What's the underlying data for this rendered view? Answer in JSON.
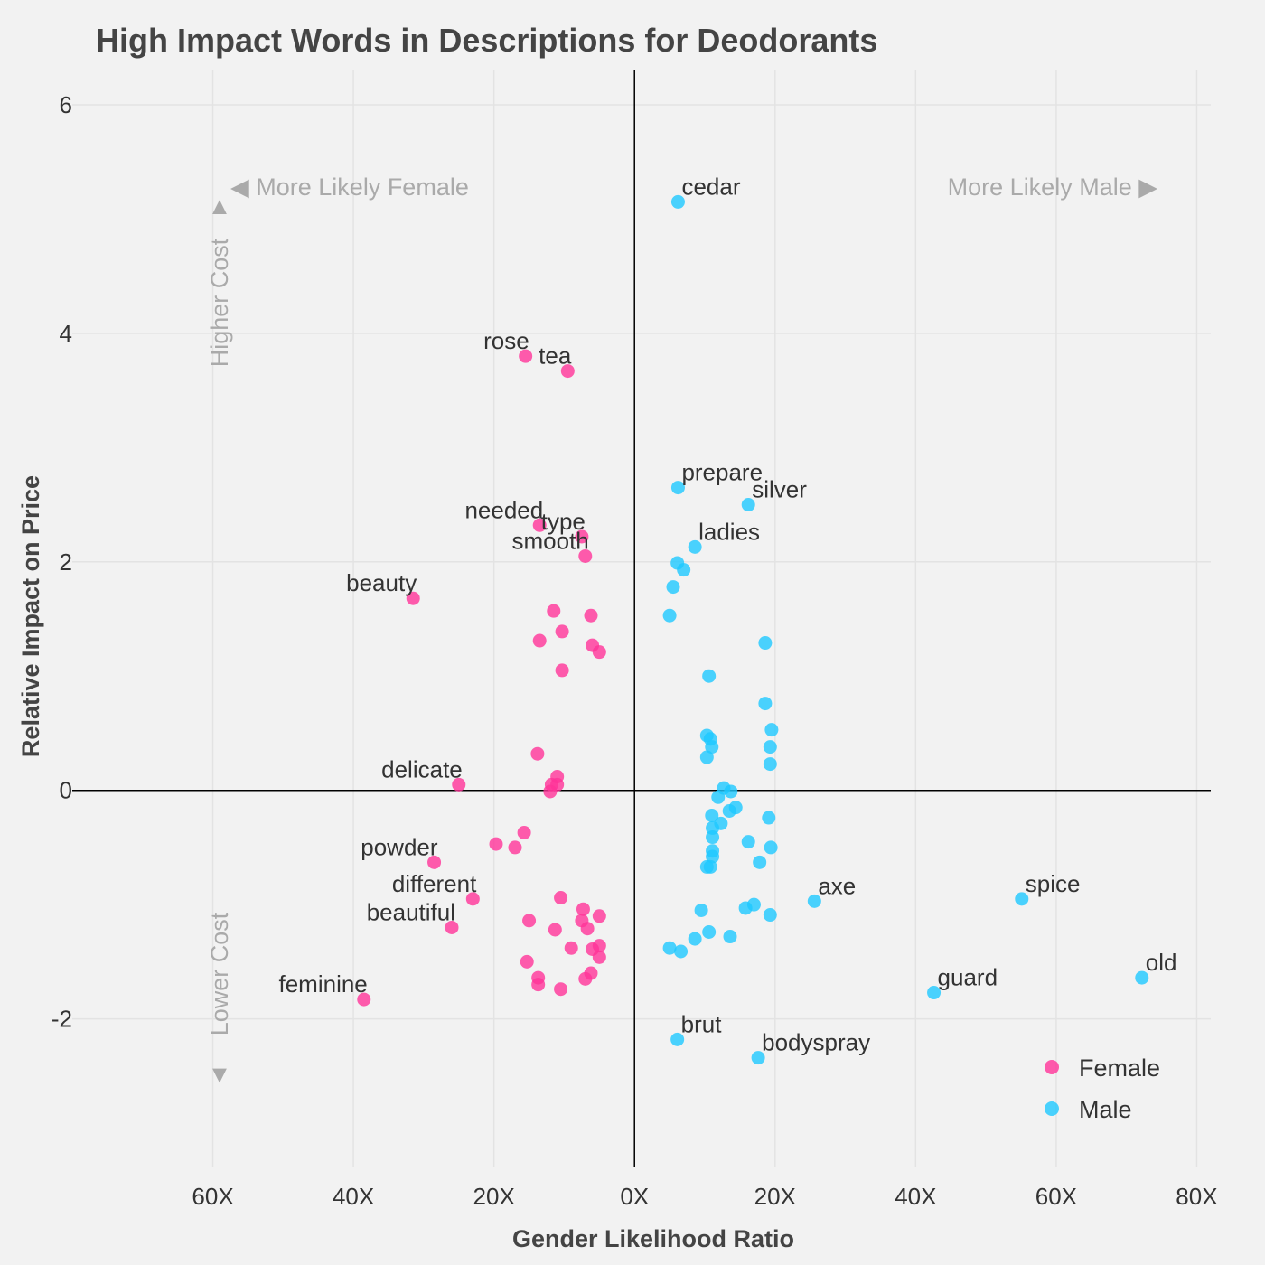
{
  "chart_data": {
    "type": "scatter",
    "title": "High Impact Words in Descriptions for Deodorants",
    "xlabel": "Gender Likelihood Ratio",
    "ylabel": "Relative Impact on Price",
    "x_scale_note": "diverging ratio axis; negative = more likely female, positive = more likely male",
    "xlim": [
      -80,
      82
    ],
    "ylim": [
      -3.3,
      6.3
    ],
    "x_ticks": [
      {
        "value": -60,
        "label": "60X"
      },
      {
        "value": -40,
        "label": "40X"
      },
      {
        "value": -20,
        "label": "20X"
      },
      {
        "value": 0,
        "label": "0X"
      },
      {
        "value": 20,
        "label": "20X"
      },
      {
        "value": 40,
        "label": "40X"
      },
      {
        "value": 60,
        "label": "60X"
      },
      {
        "value": 80,
        "label": "80X"
      }
    ],
    "y_ticks": [
      {
        "value": -2,
        "label": "-2"
      },
      {
        "value": 0,
        "label": "0"
      },
      {
        "value": 2,
        "label": "2"
      },
      {
        "value": 4,
        "label": "4"
      },
      {
        "value": 6,
        "label": "6"
      }
    ],
    "grid": true,
    "legend_position": "bottom-right",
    "annotations": {
      "female": "◀ More Likely Female",
      "male": "More Likely Male ▶",
      "higher": "Higher Cost",
      "lower": "Lower Cost",
      "up_arrow": "▲",
      "down_arrow": "▼"
    },
    "series": [
      {
        "name": "Female",
        "color": "#ff3399",
        "points": [
          {
            "x": -15.5,
            "y": 3.8,
            "label": "rose"
          },
          {
            "x": -9.5,
            "y": 3.67,
            "label": "tea"
          },
          {
            "x": -13.5,
            "y": 2.32,
            "label": "needed"
          },
          {
            "x": -7.5,
            "y": 2.22,
            "label": "type"
          },
          {
            "x": -7,
            "y": 2.05,
            "label": "smooth"
          },
          {
            "x": -31.5,
            "y": 1.68,
            "label": "beauty"
          },
          {
            "x": -25,
            "y": 0.05,
            "label": "delicate"
          },
          {
            "x": -28.5,
            "y": -0.63,
            "label": "powder"
          },
          {
            "x": -23,
            "y": -0.95,
            "label": "different"
          },
          {
            "x": -26,
            "y": -1.2,
            "label": "beautiful"
          },
          {
            "x": -38.5,
            "y": -1.83,
            "label": "feminine"
          },
          {
            "x": -11.5,
            "y": 1.57
          },
          {
            "x": -6.2,
            "y": 1.53
          },
          {
            "x": -10.3,
            "y": 1.39
          },
          {
            "x": -13.5,
            "y": 1.31
          },
          {
            "x": -6,
            "y": 1.27
          },
          {
            "x": -5,
            "y": 1.21
          },
          {
            "x": -10.3,
            "y": 1.05
          },
          {
            "x": -13.8,
            "y": 0.32
          },
          {
            "x": -11,
            "y": 0.12
          },
          {
            "x": -11.8,
            "y": 0.05
          },
          {
            "x": -11,
            "y": 0.05
          },
          {
            "x": -12,
            "y": -0.01
          },
          {
            "x": -15.7,
            "y": -0.37
          },
          {
            "x": -19.7,
            "y": -0.47
          },
          {
            "x": -17,
            "y": -0.5
          },
          {
            "x": -10.5,
            "y": -0.94
          },
          {
            "x": -7.3,
            "y": -1.04
          },
          {
            "x": -5,
            "y": -1.1
          },
          {
            "x": -15,
            "y": -1.14
          },
          {
            "x": -7.5,
            "y": -1.14
          },
          {
            "x": -6.7,
            "y": -1.21
          },
          {
            "x": -11.3,
            "y": -1.22
          },
          {
            "x": -5,
            "y": -1.36
          },
          {
            "x": -9,
            "y": -1.38
          },
          {
            "x": -6,
            "y": -1.39
          },
          {
            "x": -5,
            "y": -1.46
          },
          {
            "x": -15.3,
            "y": -1.5
          },
          {
            "x": -6.2,
            "y": -1.6
          },
          {
            "x": -13.7,
            "y": -1.64
          },
          {
            "x": -7,
            "y": -1.65
          },
          {
            "x": -13.7,
            "y": -1.7
          },
          {
            "x": -10.5,
            "y": -1.74
          }
        ]
      },
      {
        "name": "Male",
        "color": "#1ec8ff",
        "points": [
          {
            "x": 6.2,
            "y": 5.15,
            "label": "cedar"
          },
          {
            "x": 6.2,
            "y": 2.65,
            "label": "prepare"
          },
          {
            "x": 16.2,
            "y": 2.5,
            "label": "silver"
          },
          {
            "x": 8.6,
            "y": 2.13,
            "label": "ladies"
          },
          {
            "x": 25.6,
            "y": -0.97,
            "label": "axe"
          },
          {
            "x": 55.1,
            "y": -0.95,
            "label": "spice"
          },
          {
            "x": 72.2,
            "y": -1.64,
            "label": "old"
          },
          {
            "x": 42.6,
            "y": -1.77,
            "label": "guard"
          },
          {
            "x": 6.1,
            "y": -2.18,
            "label": "brut"
          },
          {
            "x": 17.6,
            "y": -2.34,
            "label": "bodyspray"
          },
          {
            "x": 6.1,
            "y": 1.99
          },
          {
            "x": 7,
            "y": 1.93
          },
          {
            "x": 5.5,
            "y": 1.78
          },
          {
            "x": 5,
            "y": 1.53
          },
          {
            "x": 18.6,
            "y": 1.29
          },
          {
            "x": 10.6,
            "y": 1
          },
          {
            "x": 18.6,
            "y": 0.76
          },
          {
            "x": 19.5,
            "y": 0.53
          },
          {
            "x": 10.3,
            "y": 0.48
          },
          {
            "x": 10.8,
            "y": 0.45
          },
          {
            "x": 11,
            "y": 0.38
          },
          {
            "x": 19.3,
            "y": 0.38
          },
          {
            "x": 10.3,
            "y": 0.29
          },
          {
            "x": 19.3,
            "y": 0.23
          },
          {
            "x": 12.7,
            "y": 0.02
          },
          {
            "x": 13.7,
            "y": -0.01
          },
          {
            "x": 11.9,
            "y": -0.06
          },
          {
            "x": 14.4,
            "y": -0.15
          },
          {
            "x": 13.5,
            "y": -0.18
          },
          {
            "x": 11,
            "y": -0.22
          },
          {
            "x": 19.1,
            "y": -0.24
          },
          {
            "x": 12.3,
            "y": -0.29
          },
          {
            "x": 11.1,
            "y": -0.33
          },
          {
            "x": 11.1,
            "y": -0.41
          },
          {
            "x": 16.2,
            "y": -0.45
          },
          {
            "x": 19.4,
            "y": -0.5
          },
          {
            "x": 11.1,
            "y": -0.53
          },
          {
            "x": 11.1,
            "y": -0.58
          },
          {
            "x": 17.8,
            "y": -0.63
          },
          {
            "x": 10.3,
            "y": -0.67
          },
          {
            "x": 10.8,
            "y": -0.67
          },
          {
            "x": 17,
            "y": -1
          },
          {
            "x": 15.8,
            "y": -1.03
          },
          {
            "x": 9.5,
            "y": -1.05
          },
          {
            "x": 19.3,
            "y": -1.09
          },
          {
            "x": 10.6,
            "y": -1.24
          },
          {
            "x": 13.6,
            "y": -1.28
          },
          {
            "x": 8.6,
            "y": -1.3
          },
          {
            "x": 5,
            "y": -1.38
          },
          {
            "x": 6.6,
            "y": -1.41
          }
        ]
      }
    ]
  }
}
